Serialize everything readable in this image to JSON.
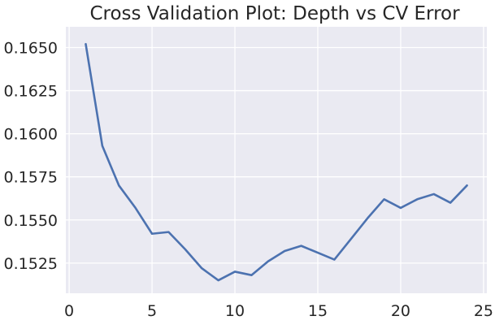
{
  "chart_data": {
    "type": "line",
    "title": "Cross Validation Plot: Depth vs CV Error",
    "xlabel": "",
    "ylabel": "",
    "xlim": [
      -0.2,
      25.2
    ],
    "ylim": [
      0.15075,
      0.1662
    ],
    "xticks": [
      0,
      5,
      10,
      15,
      20,
      25
    ],
    "yticks": [
      0.1525,
      0.155,
      0.1575,
      0.16,
      0.1625,
      0.165
    ],
    "ytick_labels": [
      "0.1525",
      "0.1550",
      "0.1575",
      "0.1600",
      "0.1625",
      "0.1650"
    ],
    "xtick_labels": [
      "0",
      "5",
      "10",
      "15",
      "20",
      "25"
    ],
    "grid": true,
    "series": [
      {
        "color": "#4c72b0",
        "x": [
          1,
          2,
          3,
          4,
          5,
          6,
          7,
          8,
          9,
          10,
          11,
          12,
          13,
          14,
          15,
          16,
          17,
          18,
          19,
          20,
          21,
          22,
          23,
          24
        ],
        "y": [
          0.1652,
          0.1593,
          0.157,
          0.1557,
          0.1542,
          0.1543,
          0.1533,
          0.1522,
          0.1515,
          0.152,
          0.1518,
          0.1526,
          0.1532,
          0.1535,
          0.1531,
          0.1527,
          0.1539,
          0.1551,
          0.1562,
          0.1557,
          0.1562,
          0.1565,
          0.156,
          0.157
        ]
      }
    ]
  }
}
